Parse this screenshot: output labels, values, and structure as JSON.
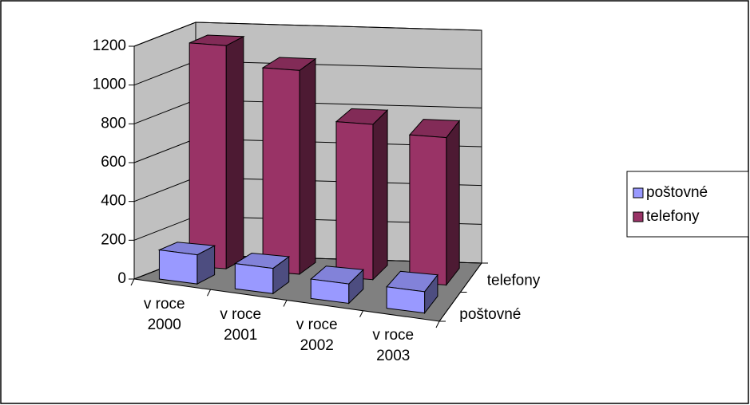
{
  "chart_data": {
    "type": "bar3d",
    "categories": [
      "v roce 2000",
      "v roce 2001",
      "v roce 2002",
      "v roce 2003"
    ],
    "series": [
      {
        "name": "poštovné",
        "color": "#9999ff",
        "values": [
          150,
          130,
          100,
          110
        ]
      },
      {
        "name": "telefony",
        "color": "#993366",
        "values": [
          1150,
          1050,
          800,
          760
        ]
      }
    ],
    "ylim": [
      0,
      1200
    ],
    "yticks": [
      0,
      200,
      400,
      600,
      800,
      1000,
      1200
    ],
    "grid": true,
    "legend": "right"
  }
}
